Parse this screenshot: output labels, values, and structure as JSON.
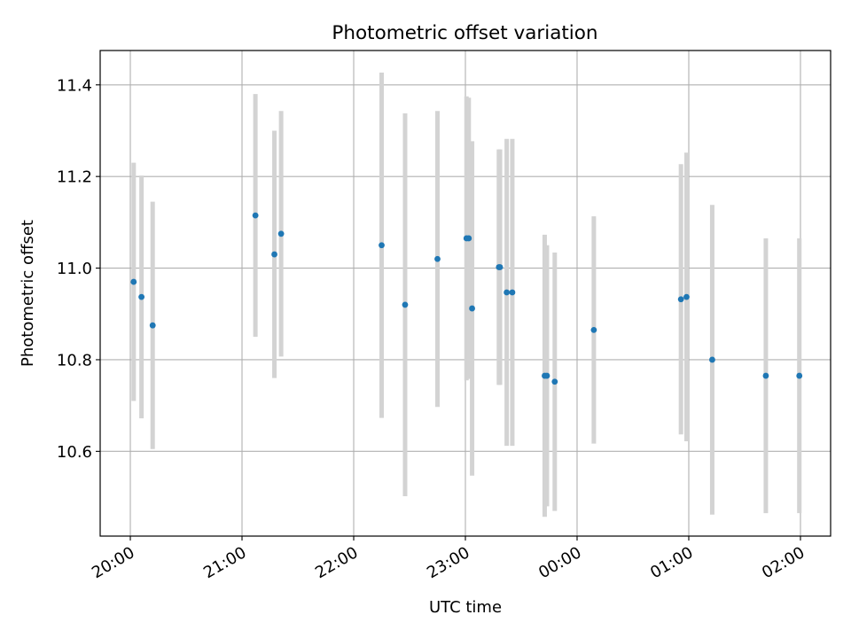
{
  "chart_data": {
    "type": "scatter",
    "title": "Photometric offset variation",
    "xlabel": "UTC time",
    "ylabel": "Photometric offset",
    "xlim": [
      -0.27,
      6.27
    ],
    "ylim": [
      10.415,
      11.475
    ],
    "grid": true,
    "x_ticks": [
      {
        "value": 0,
        "label": "20:00"
      },
      {
        "value": 1,
        "label": "21:00"
      },
      {
        "value": 2,
        "label": "22:00"
      },
      {
        "value": 3,
        "label": "23:00"
      },
      {
        "value": 4,
        "label": "00:00"
      },
      {
        "value": 5,
        "label": "01:00"
      },
      {
        "value": 6,
        "label": "02:00"
      }
    ],
    "y_ticks": [
      {
        "value": 10.6,
        "label": "10.6"
      },
      {
        "value": 10.8,
        "label": "10.8"
      },
      {
        "value": 11.0,
        "label": "11.0"
      },
      {
        "value": 11.2,
        "label": "11.2"
      },
      {
        "value": 11.4,
        "label": "11.4"
      }
    ],
    "x_unit": "hours since 20:00 UTC",
    "marker_color": "#1f77b4",
    "errorbar_color": "#d3d3d3",
    "points": [
      {
        "x": 0.03,
        "y": 10.97,
        "yerr": 0.26
      },
      {
        "x": 0.1,
        "y": 10.937,
        "yerr": 0.265
      },
      {
        "x": 0.2,
        "y": 10.875,
        "yerr": 0.27
      },
      {
        "x": 1.12,
        "y": 11.115,
        "yerr": 0.265
      },
      {
        "x": 1.29,
        "y": 11.03,
        "yerr": 0.27
      },
      {
        "x": 1.35,
        "y": 11.075,
        "yerr": 0.268
      },
      {
        "x": 2.25,
        "y": 11.05,
        "yerr": 0.377
      },
      {
        "x": 2.46,
        "y": 10.92,
        "yerr": 0.418
      },
      {
        "x": 2.75,
        "y": 11.02,
        "yerr": 0.323
      },
      {
        "x": 3.01,
        "y": 11.065,
        "yerr": 0.31
      },
      {
        "x": 3.03,
        "y": 11.065,
        "yerr": 0.307
      },
      {
        "x": 3.06,
        "y": 10.912,
        "yerr": 0.365
      },
      {
        "x": 3.3,
        "y": 11.002,
        "yerr": 0.257
      },
      {
        "x": 3.31,
        "y": 11.002,
        "yerr": 0.257
      },
      {
        "x": 3.37,
        "y": 10.947,
        "yerr": 0.335
      },
      {
        "x": 3.42,
        "y": 10.947,
        "yerr": 0.335
      },
      {
        "x": 3.71,
        "y": 10.765,
        "yerr": 0.308
      },
      {
        "x": 3.73,
        "y": 10.765,
        "yerr": 0.285
      },
      {
        "x": 3.8,
        "y": 10.752,
        "yerr": 0.282
      },
      {
        "x": 4.15,
        "y": 10.865,
        "yerr": 0.248
      },
      {
        "x": 4.93,
        "y": 10.932,
        "yerr": 0.295
      },
      {
        "x": 4.98,
        "y": 10.937,
        "yerr": 0.315
      },
      {
        "x": 5.21,
        "y": 10.8,
        "yerr": 0.338
      },
      {
        "x": 5.69,
        "y": 10.765,
        "yerr": 0.3
      },
      {
        "x": 5.99,
        "y": 10.765,
        "yerr": 0.3
      }
    ]
  }
}
